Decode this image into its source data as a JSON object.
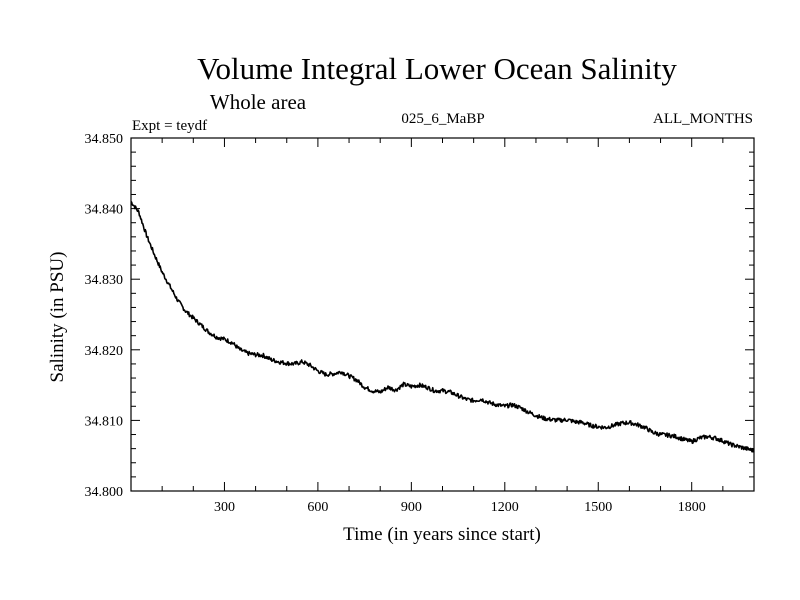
{
  "chart_data": {
    "type": "line",
    "title": "Volume Integral Lower Ocean Salinity",
    "subtitle": "Whole area",
    "expt_label": "Expt = teydf",
    "run_label": "025_6_MaBP",
    "months_label": "ALL_MONTHS",
    "xlabel": "Time (in years since start)",
    "ylabel": "Salinity (in PSU)",
    "xlim": [
      0,
      2000
    ],
    "ylim": [
      34.8,
      34.85
    ],
    "x_ticks": [
      300,
      600,
      900,
      1200,
      1500,
      1800
    ],
    "y_ticks": [
      "34.800",
      "34.810",
      "34.820",
      "34.830",
      "34.840",
      "34.850"
    ],
    "series": [
      {
        "name": "salinity",
        "x": [
          0,
          25,
          50,
          75,
          100,
          125,
          150,
          175,
          200,
          225,
          250,
          275,
          300,
          325,
          350,
          375,
          400,
          425,
          450,
          475,
          500,
          525,
          550,
          575,
          600,
          625,
          650,
          675,
          700,
          725,
          750,
          775,
          800,
          825,
          850,
          875,
          900,
          925,
          950,
          975,
          1000,
          1025,
          1050,
          1075,
          1100,
          1125,
          1150,
          1175,
          1200,
          1225,
          1250,
          1275,
          1300,
          1325,
          1350,
          1375,
          1400,
          1425,
          1450,
          1475,
          1500,
          1525,
          1550,
          1575,
          1600,
          1625,
          1650,
          1675,
          1700,
          1725,
          1750,
          1775,
          1800,
          1825,
          1850,
          1875,
          1900,
          1925,
          1950,
          1975,
          2000
        ],
        "values": [
          34.841,
          34.8395,
          34.8362,
          34.8335,
          34.831,
          34.829,
          34.827,
          34.8255,
          34.8245,
          34.8235,
          34.8225,
          34.8218,
          34.8215,
          34.821,
          34.82,
          34.8195,
          34.8193,
          34.8192,
          34.8186,
          34.8183,
          34.8181,
          34.818,
          34.8183,
          34.8178,
          34.817,
          34.8165,
          34.8166,
          34.8169,
          34.8163,
          34.8157,
          34.8147,
          34.8142,
          34.814,
          34.8147,
          34.8143,
          34.8151,
          34.8148,
          34.815,
          34.8147,
          34.8142,
          34.8142,
          34.814,
          34.8135,
          34.813,
          34.8128,
          34.813,
          34.8125,
          34.8122,
          34.812,
          34.8122,
          34.8118,
          34.8112,
          34.8107,
          34.8103,
          34.8101,
          34.81,
          34.8101,
          34.8098,
          34.8097,
          34.8093,
          34.8091,
          34.809,
          34.8093,
          34.8096,
          34.8097,
          34.8094,
          34.809,
          34.8083,
          34.808,
          34.8079,
          34.8077,
          34.8073,
          34.807,
          34.8075,
          34.8077,
          34.8075,
          34.8071,
          34.8066,
          34.8063,
          34.806,
          34.8057
        ]
      }
    ]
  }
}
